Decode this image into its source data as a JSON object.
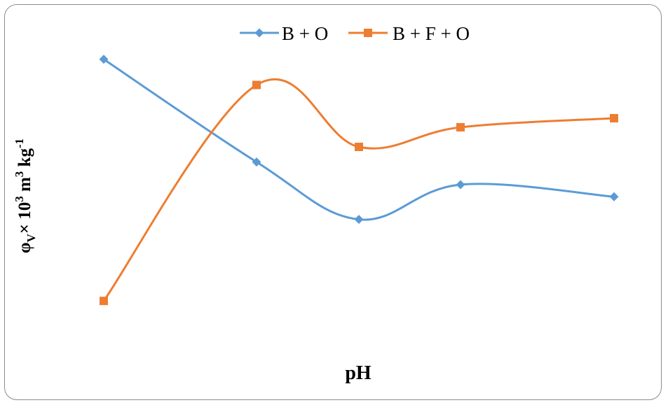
{
  "chart_data": {
    "type": "line",
    "smooth": true,
    "xlabel": "pH",
    "ylabel": {
      "symbol": "φ",
      "symbol_sub": "V",
      "times": "× 10",
      "exp1": "3",
      "unit": " m",
      "exp2": "3",
      "unit2": " kg",
      "exp3": "-1"
    },
    "x_tick_labels_visible": false,
    "y_tick_labels_visible": false,
    "gridlines": false,
    "legend_position": "top",
    "series": [
      {
        "name": "B + O",
        "color": "#5b9bd5",
        "marker": "diamond",
        "values": [
          9.5,
          6.1,
          4.2,
          5.35,
          4.95
        ]
      },
      {
        "name": "B + F + O",
        "color": "#ed7d31",
        "marker": "square",
        "values": [
          1.5,
          8.65,
          6.6,
          7.25,
          7.55
        ]
      }
    ],
    "ylim": [
      0,
      11
    ]
  }
}
